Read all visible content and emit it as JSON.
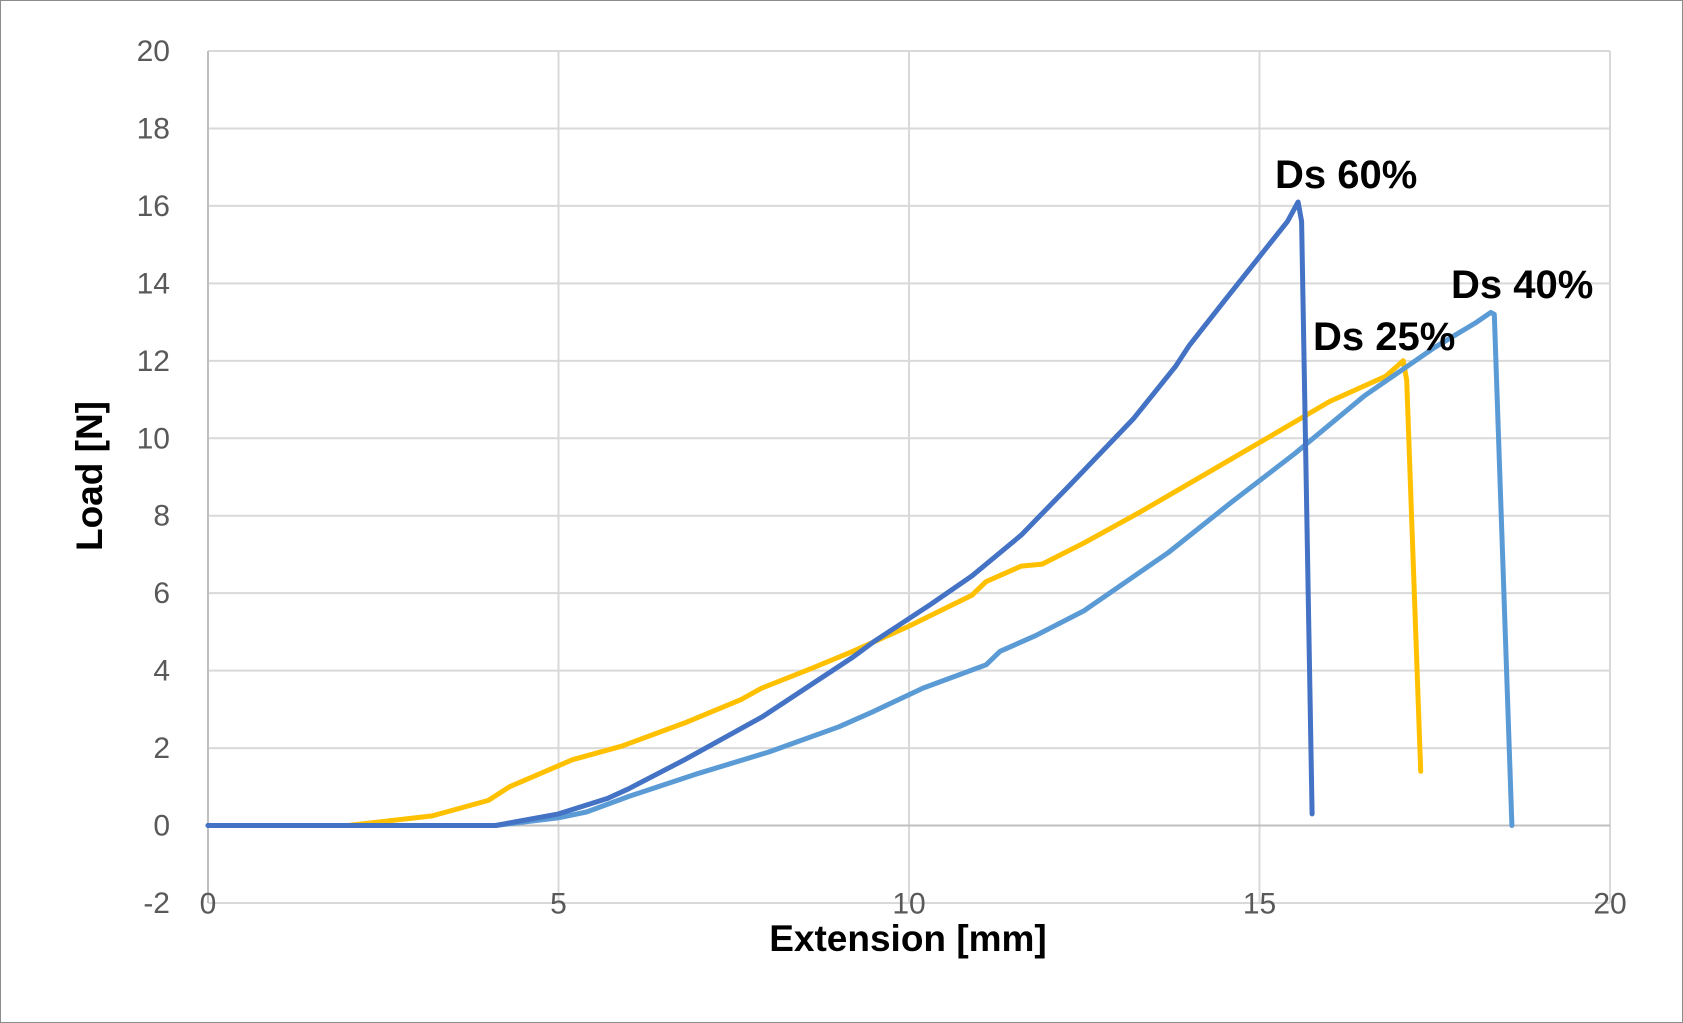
{
  "chart_data": {
    "type": "line",
    "xlabel": "Extension [mm]",
    "ylabel": "Load [N]",
    "xlim": [
      0,
      20
    ],
    "ylim": [
      -2,
      20
    ],
    "x_ticks": [
      0,
      5,
      10,
      15,
      20
    ],
    "y_ticks": [
      -2,
      0,
      2,
      4,
      6,
      8,
      10,
      12,
      14,
      16,
      18,
      20
    ],
    "grid": true,
    "series": [
      {
        "name": "Ds 25%",
        "color": "#FFC000",
        "points": [
          [
            0,
            0
          ],
          [
            2,
            0
          ],
          [
            3.2,
            0.25
          ],
          [
            4.0,
            0.65
          ],
          [
            4.3,
            1.0
          ],
          [
            5.2,
            1.7
          ],
          [
            5.9,
            2.05
          ],
          [
            6.8,
            2.65
          ],
          [
            7.6,
            3.25
          ],
          [
            7.9,
            3.55
          ],
          [
            8.6,
            4.05
          ],
          [
            9.2,
            4.5
          ],
          [
            10,
            5.15
          ],
          [
            10.9,
            5.95
          ],
          [
            11.1,
            6.3
          ],
          [
            11.6,
            6.7
          ],
          [
            11.9,
            6.75
          ],
          [
            12.5,
            7.3
          ],
          [
            13.3,
            8.1
          ],
          [
            14.3,
            9.15
          ],
          [
            15.2,
            10.1
          ],
          [
            16.0,
            10.95
          ],
          [
            16.8,
            11.6
          ],
          [
            17.05,
            12.0
          ],
          [
            17.1,
            11.5
          ],
          [
            17.3,
            1.4
          ]
        ]
      },
      {
        "name": "Ds 40%",
        "color": "#5B9BD5",
        "points": [
          [
            0,
            0
          ],
          [
            4.1,
            0
          ],
          [
            5.0,
            0.2
          ],
          [
            5.4,
            0.35
          ],
          [
            6.0,
            0.75
          ],
          [
            7.0,
            1.35
          ],
          [
            8.0,
            1.9
          ],
          [
            9.0,
            2.55
          ],
          [
            9.5,
            2.95
          ],
          [
            10.2,
            3.55
          ],
          [
            11.1,
            4.15
          ],
          [
            11.3,
            4.5
          ],
          [
            11.8,
            4.9
          ],
          [
            12.5,
            5.55
          ],
          [
            13.7,
            7.05
          ],
          [
            14.6,
            8.35
          ],
          [
            15.5,
            9.6
          ],
          [
            16.5,
            11.1
          ],
          [
            17.5,
            12.35
          ],
          [
            18.1,
            13.0
          ],
          [
            18.3,
            13.25
          ],
          [
            18.35,
            13.2
          ],
          [
            18.6,
            0
          ]
        ]
      },
      {
        "name": "Ds 60%",
        "color": "#4472C4",
        "points": [
          [
            0,
            0
          ],
          [
            4.1,
            0
          ],
          [
            5.0,
            0.3
          ],
          [
            5.7,
            0.7
          ],
          [
            6.0,
            0.95
          ],
          [
            6.8,
            1.7
          ],
          [
            7.9,
            2.8
          ],
          [
            9.2,
            4.35
          ],
          [
            9.5,
            4.75
          ],
          [
            10.3,
            5.7
          ],
          [
            10.9,
            6.45
          ],
          [
            11.6,
            7.5
          ],
          [
            12.3,
            8.8
          ],
          [
            13.2,
            10.5
          ],
          [
            13.8,
            11.85
          ],
          [
            14.0,
            12.4
          ],
          [
            14.5,
            13.55
          ],
          [
            15.4,
            15.6
          ],
          [
            15.55,
            16.1
          ],
          [
            15.6,
            15.6
          ],
          [
            15.75,
            0.3
          ]
        ]
      }
    ],
    "annotations": [
      {
        "text": "Ds 60%",
        "series": "Ds 60%"
      },
      {
        "text": "Ds 40%",
        "series": "Ds 40%"
      },
      {
        "text": "Ds 25%",
        "series": "Ds 25%"
      }
    ]
  }
}
